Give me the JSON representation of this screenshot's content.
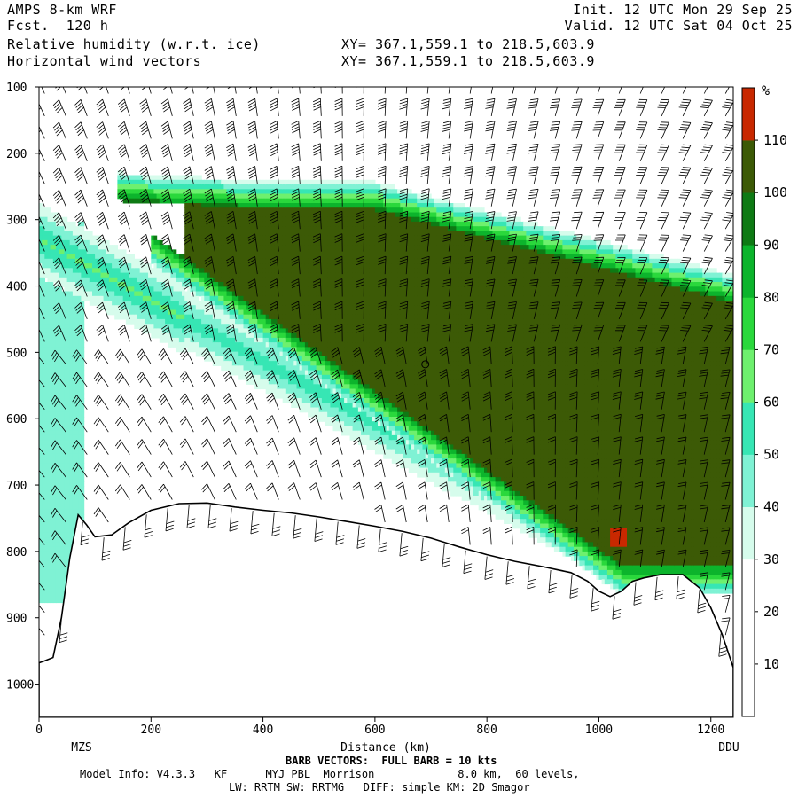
{
  "header": {
    "model": "AMPS 8-km WRF",
    "fcst": "Fcst.  120 h",
    "field1": "Relative humidity (w.r.t. ice)",
    "field2": "Horizontal wind vectors",
    "init": "Init. 12 UTC Mon 29 Sep 25",
    "valid": "Valid. 12 UTC Sat 04 Oct 25",
    "xy1": "XY= 367.1,559.1 to 218.5,603.9",
    "xy2": "XY= 367.1,559.1 to 218.5,603.9"
  },
  "footer": {
    "barb": "BARB VECTORS:  FULL BARB = 10 kts",
    "model_info": "Model Info: V4.3.3   KF      MYJ PBL  Morrison             8.0 km,  60 levels,",
    "physics": "LW: RRTM SW: RRTMG   DIFF: simple KM: 2D Smagor"
  },
  "chart_data": {
    "type": "heatmap",
    "xlabel": "Distance (km)",
    "x_range": [
      0,
      1240
    ],
    "x_ticks": [
      0,
      200,
      400,
      600,
      800,
      1000,
      1200
    ],
    "y_range": [
      100,
      1050
    ],
    "y_ticks": [
      100,
      200,
      300,
      400,
      500,
      600,
      700,
      800,
      900,
      1000
    ],
    "y_reversed": true,
    "endpoint_labels": {
      "left": "MZS",
      "right": "DDU"
    },
    "colorbar": {
      "unit": "%",
      "levels": [
        10,
        20,
        30,
        40,
        50,
        60,
        70,
        80,
        90,
        100,
        110
      ],
      "colors": [
        "#ffffff",
        "#ffffff",
        "#ffffff",
        "#d6fcec",
        "#7ff2d4",
        "#37e6b4",
        "#6ef06e",
        "#2ad83c",
        "#0cb42c",
        "#0e7a14",
        "#3c5a06",
        "#c82800"
      ]
    },
    "terrain_profile": {
      "x": [
        0,
        10,
        25,
        40,
        55,
        70,
        85,
        100,
        130,
        160,
        200,
        250,
        300,
        350,
        400,
        450,
        500,
        550,
        600,
        650,
        700,
        750,
        800,
        850,
        900,
        950,
        980,
        1000,
        1020,
        1040,
        1060,
        1080,
        1110,
        1150,
        1180,
        1200,
        1220,
        1240
      ],
      "p": [
        968,
        965,
        960,
        900,
        810,
        745,
        760,
        778,
        775,
        757,
        738,
        728,
        727,
        733,
        738,
        742,
        748,
        755,
        762,
        770,
        780,
        793,
        805,
        815,
        823,
        832,
        845,
        860,
        868,
        860,
        845,
        840,
        835,
        835,
        855,
        885,
        925,
        975
      ]
    },
    "rh_features": [
      {
        "name": "upper moist tongue",
        "rh_percent": 105,
        "x_km": [
          300,
          1240
        ],
        "p_hpa": [
          290,
          820
        ]
      },
      {
        "name": "upper moist band edge",
        "rh_percent": 85,
        "x_km": [
          130,
          1240
        ],
        "p_hpa": [
          255,
          430
        ]
      },
      {
        "name": "mid-level band",
        "rh_percent": 50,
        "x_km": [
          0,
          1000
        ],
        "p_hpa": [
          300,
          880
        ]
      },
      {
        "name": "near-surface saturated pocket",
        "rh_percent": 115,
        "x_km": [
          1025,
          1045
        ],
        "p_hpa": [
          770,
          790
        ]
      }
    ]
  }
}
